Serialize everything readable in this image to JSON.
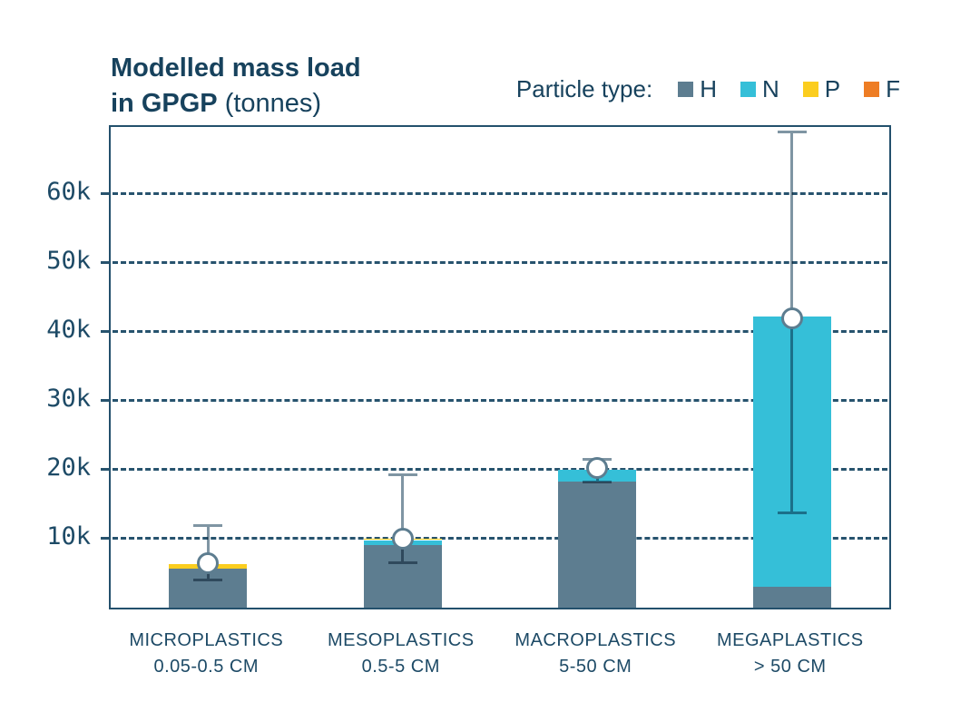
{
  "title": {
    "line1": "Modelled mass load",
    "line2_bold": "in GPGP",
    "line2_regular": " (tonnes)"
  },
  "legend": {
    "label": "Particle type:",
    "items": [
      {
        "key": "H",
        "color": "#5d7d90"
      },
      {
        "key": "N",
        "color": "#35bfd8"
      },
      {
        "key": "P",
        "color": "#fbcd1f"
      },
      {
        "key": "F",
        "color": "#ee7d24"
      }
    ]
  },
  "chart_data": {
    "type": "bar",
    "stacked": true,
    "title": "Modelled mass load in GPGP (tonnes)",
    "ylabel": "tonnes",
    "xlabel": "",
    "ylim": [
      0,
      69700
    ],
    "grid": "horizontal-dashed",
    "legend_position": "top-right",
    "categories": [
      {
        "name": "MICROPLASTICS",
        "size": "0.05-0.5 CM"
      },
      {
        "name": "MESOPLASTICS",
        "size": "0.5-5 CM"
      },
      {
        "name": "MACROPLASTICS",
        "size": "5-50 CM"
      },
      {
        "name": "MEGAPLASTICS",
        "size": "> 50 CM"
      }
    ],
    "series": [
      {
        "name": "H",
        "color": "#5d7d90",
        "values": [
          5700,
          9100,
          18300,
          3000
        ]
      },
      {
        "name": "N",
        "color": "#35bfd8",
        "values": [
          0,
          700,
          1700,
          39200
        ]
      },
      {
        "name": "P",
        "color": "#fbcd1f",
        "values": [
          600,
          200,
          0,
          0
        ]
      },
      {
        "name": "F",
        "color": "#ee7d24",
        "values": [
          0,
          0,
          0,
          0
        ]
      }
    ],
    "totals": [
      6300,
      10000,
      20000,
      42200
    ],
    "markers": [
      6400,
      10000,
      20300,
      42000
    ],
    "error_low": [
      4100,
      6600,
      18300,
      13800
    ],
    "error_high": [
      12000,
      19300,
      21600,
      69000
    ],
    "y_ticks": [
      {
        "value": 10000,
        "label": "10k"
      },
      {
        "value": 20000,
        "label": "20k"
      },
      {
        "value": 30000,
        "label": "30k"
      },
      {
        "value": 40000,
        "label": "40k"
      },
      {
        "value": 50000,
        "label": "50k"
      },
      {
        "value": 60000,
        "label": "60k"
      }
    ]
  }
}
